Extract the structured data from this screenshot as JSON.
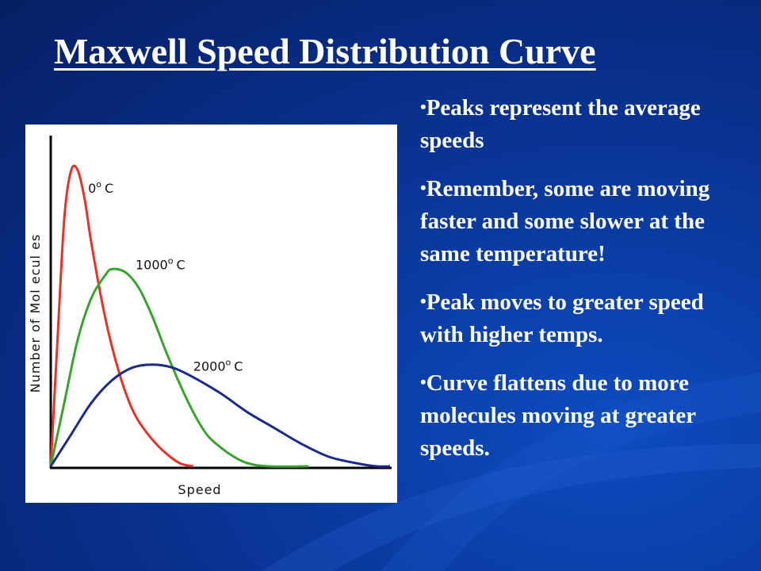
{
  "slide": {
    "title": "Maxwell Speed Distribution Curve",
    "bullet_glyph": "•",
    "bullets": [
      "Peaks represent the average speeds",
      "Remember, some are moving faster and some slower at the same temperature!",
      "Peak moves to greater speed with higher temps.",
      "Curve flattens due to more molecules moving at greater speeds."
    ]
  },
  "chart_data": {
    "type": "line",
    "xlabel": "Speed",
    "ylabel": "Number of Mol ecul es",
    "xlim": [
      0,
      100
    ],
    "ylim": [
      0,
      100
    ],
    "grid": false,
    "legend": "none",
    "series": [
      {
        "name": "0° C",
        "color": "#e8322a",
        "label_text": "0",
        "label_unit": "C",
        "label_at": [
          11,
          86
        ],
        "points": [
          [
            0,
            0
          ],
          [
            2,
            40
          ],
          [
            4,
            78
          ],
          [
            6,
            93
          ],
          [
            8,
            93
          ],
          [
            10,
            84
          ],
          [
            12,
            70
          ],
          [
            16,
            47
          ],
          [
            20,
            30
          ],
          [
            24,
            18
          ],
          [
            28,
            11
          ],
          [
            33,
            5
          ],
          [
            38,
            1
          ],
          [
            42,
            0
          ]
        ]
      },
      {
        "name": "1000° C",
        "color": "#3aa32f",
        "label_text": "1000",
        "label_unit": "C",
        "label_at": [
          25,
          62
        ],
        "points": [
          [
            0,
            0
          ],
          [
            4,
            20
          ],
          [
            8,
            40
          ],
          [
            12,
            53
          ],
          [
            16,
            60
          ],
          [
            18,
            62
          ],
          [
            22,
            61
          ],
          [
            26,
            56
          ],
          [
            30,
            47
          ],
          [
            34,
            36
          ],
          [
            38,
            26
          ],
          [
            42,
            17
          ],
          [
            46,
            10
          ],
          [
            50,
            6
          ],
          [
            54,
            3
          ],
          [
            58,
            1
          ],
          [
            64,
            0
          ],
          [
            76,
            0
          ]
        ]
      },
      {
        "name": "2000° C",
        "color": "#1c2a8c",
        "label_text": "2000",
        "label_unit": "C",
        "label_at": [
          42,
          30
        ],
        "points": [
          [
            0,
            0
          ],
          [
            6,
            10
          ],
          [
            12,
            20
          ],
          [
            18,
            27
          ],
          [
            24,
            31
          ],
          [
            30,
            32
          ],
          [
            36,
            31
          ],
          [
            42,
            28
          ],
          [
            50,
            23
          ],
          [
            58,
            17
          ],
          [
            66,
            12
          ],
          [
            74,
            7
          ],
          [
            82,
            3
          ],
          [
            90,
            1
          ],
          [
            96,
            0
          ],
          [
            100,
            0
          ]
        ]
      }
    ]
  }
}
